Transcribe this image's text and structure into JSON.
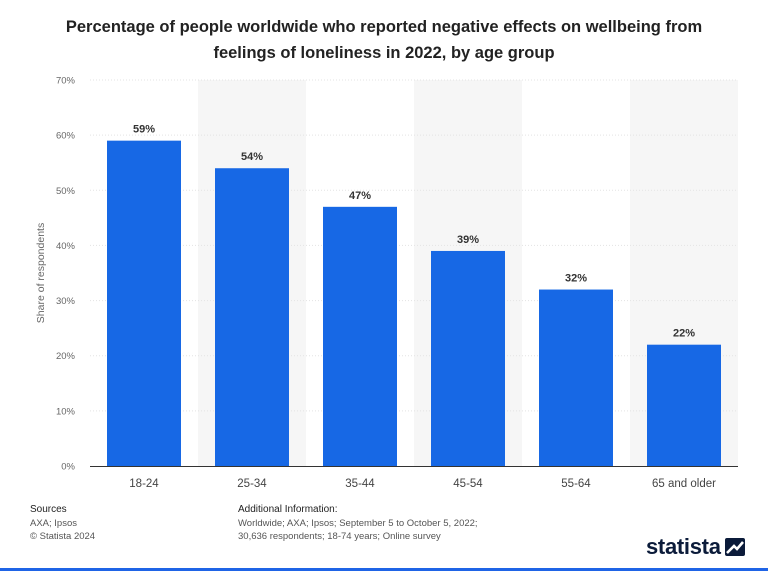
{
  "title": "Percentage of people worldwide who reported negative effects on wellbeing from feelings of loneliness in 2022, by age group",
  "chart_data": {
    "type": "bar",
    "title": "Percentage of people worldwide who reported negative effects on wellbeing from feelings of loneliness in 2022, by age group",
    "categories": [
      "18-24",
      "25-34",
      "35-44",
      "45-54",
      "55-64",
      "65 and older"
    ],
    "values": [
      59,
      54,
      47,
      39,
      32,
      22
    ],
    "data_labels": [
      "59%",
      "54%",
      "47%",
      "39%",
      "32%",
      "22%"
    ],
    "xlabel": "",
    "ylabel": "Share of respondents",
    "ylim": [
      0,
      70
    ],
    "yticks": [
      0,
      10,
      20,
      30,
      40,
      50,
      60,
      70
    ],
    "ytick_labels": [
      "0%",
      "10%",
      "20%",
      "30%",
      "40%",
      "50%",
      "60%",
      "70%"
    ],
    "grid": true,
    "bar_color": "#1768e5"
  },
  "footer": {
    "sources_heading": "Sources",
    "sources_text": "AXA; Ipsos",
    "copyright": "© Statista 2024",
    "info_heading": "Additional Information:",
    "info_text": "Worldwide; AXA; Ipsos; September 5 to October 5, 2022; 30,636 respondents; 18-74 years; Online survey"
  },
  "brand": {
    "name": "statista",
    "logo_icon": "statista-logo-icon"
  }
}
